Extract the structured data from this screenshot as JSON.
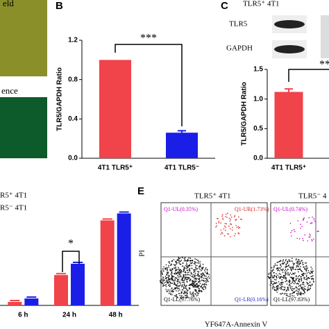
{
  "panels": {
    "a_top": "eld",
    "a_bottom": "ence",
    "b_label": "B",
    "c_label": "C",
    "c_header": "TLR5⁺ 4T1",
    "c_blot_1": "TLR5",
    "c_blot_2": "GAPDH",
    "e_label": "E",
    "e_title_1": "TLR5⁺ 4T1",
    "e_title_2": "TLR5⁻ 4",
    "e_ylabel": "PI",
    "e_xlabel": "YF647A-Annexin V",
    "e_q1": [
      "Q1-UL(0.35%)",
      "Q1-UR(1.73%)",
      "Q1-LL(97.76%)",
      "Q1-LR(0.16%)"
    ],
    "e_q2": [
      "Q1-UL(0.74%)",
      "Q1-LL(97.83%)"
    ]
  },
  "chart_data": [
    {
      "type": "bar",
      "ylabel": "TLR5/GAPDH Ratio",
      "categories": [
        "4T1 TLR5⁺",
        "4T1 TLR5⁻"
      ],
      "values": [
        1.0,
        0.26
      ],
      "errors": [
        0,
        0.02
      ],
      "colors": [
        "#f0434a",
        "#1b1ee6"
      ],
      "ylim": [
        0,
        1.2
      ],
      "yticks": [
        {
          "value": 0,
          "label": "0.0"
        },
        0.4,
        0.8,
        1.2
      ],
      "annotation": "***"
    },
    {
      "type": "bar",
      "ylabel": "TLR5/GAPDH Ratio",
      "categories": [
        "4T1 TLR5⁺"
      ],
      "values": [
        1.12
      ],
      "errors": [
        0.05
      ],
      "colors": [
        "#f0434a"
      ],
      "ylim": [
        0,
        1.5
      ],
      "yticks": [
        {
          "value": 0,
          "label": "0.0"
        },
        0.5,
        {
          "value": 1,
          "label": "1.0"
        },
        1.5
      ],
      "annotation": "**"
    },
    {
      "type": "grouped-bar",
      "categories": [
        "6 h",
        "24 h",
        "48 h"
      ],
      "series": [
        {
          "name": "R5⁺ 4T1",
          "color": "#f0434a",
          "values": [
            4,
            35,
            98
          ]
        },
        {
          "name": "R5⁻ 4T1",
          "color": "#1b1ee6",
          "values": [
            8,
            48,
            106
          ]
        }
      ],
      "ylim": [
        0,
        120
      ],
      "annotation": "*"
    }
  ]
}
